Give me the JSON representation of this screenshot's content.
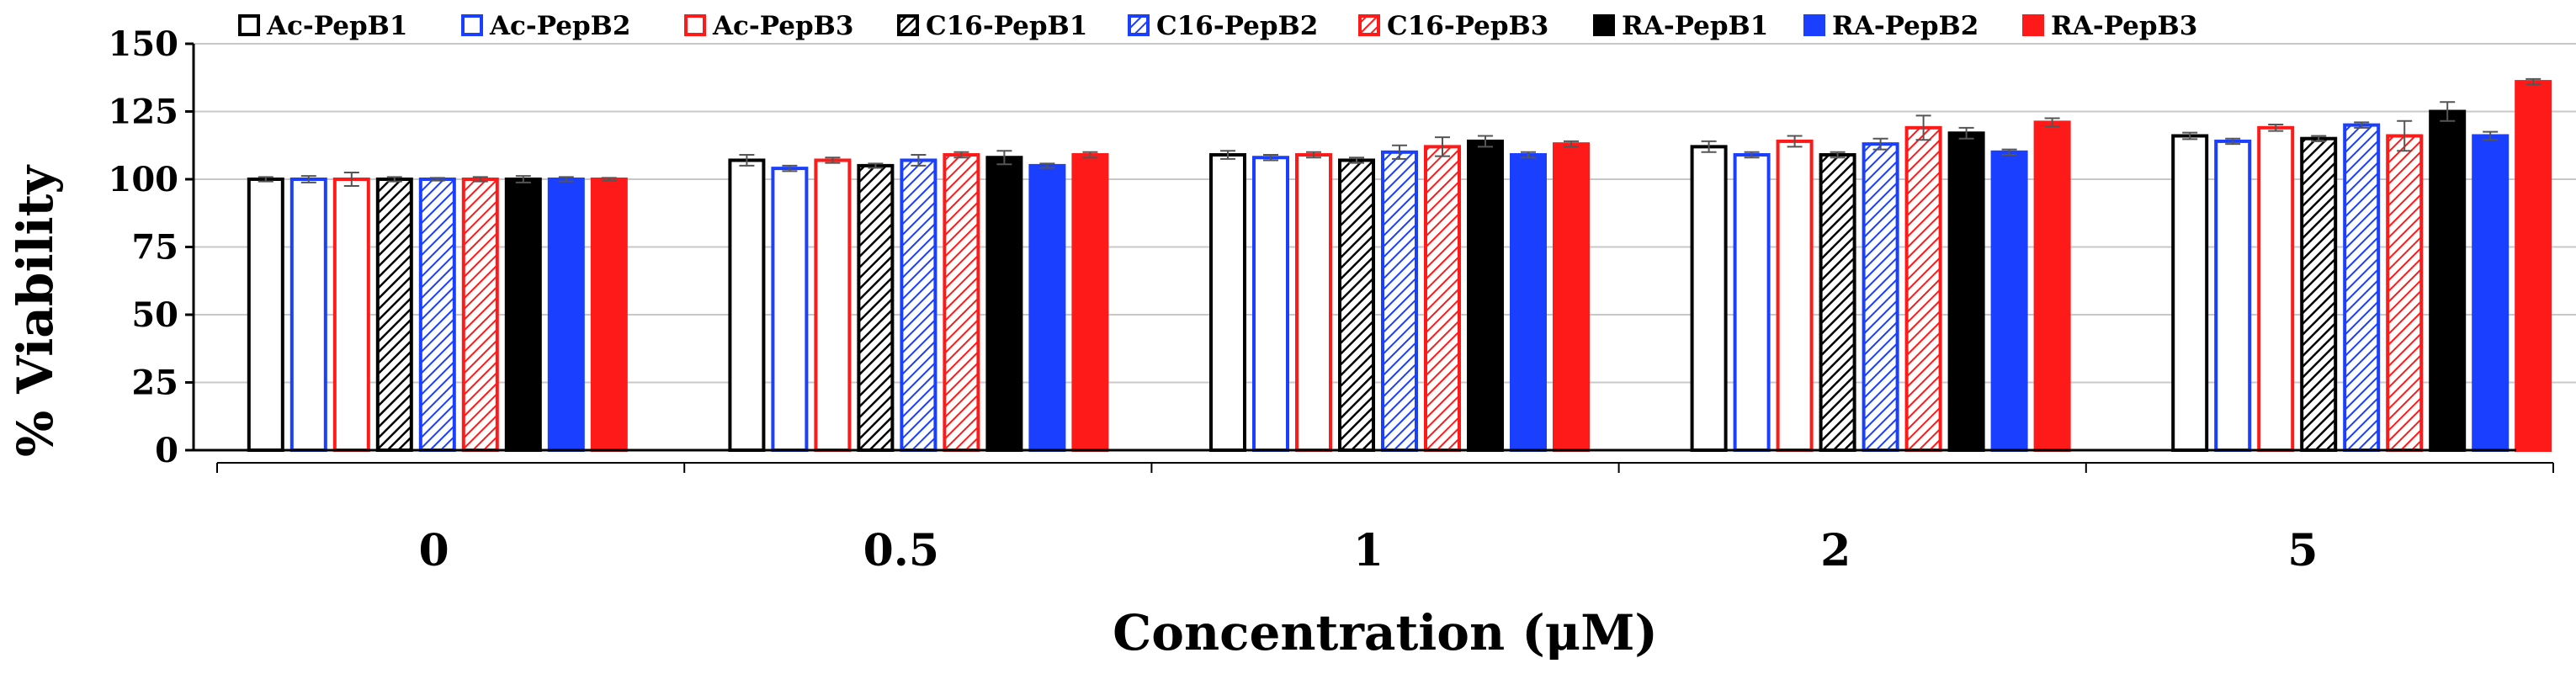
{
  "chart_data": {
    "type": "bar",
    "title": "",
    "xlabel": "Concentration (μM)",
    "ylabel": "% Viability",
    "ylim": [
      0,
      150
    ],
    "yticks": [
      0,
      25,
      50,
      75,
      100,
      125,
      150
    ],
    "grid": true,
    "legend_position": "top",
    "categories": [
      "0",
      "0.5",
      "1",
      "2",
      "5"
    ],
    "series": [
      {
        "name": "Ac-PepB1",
        "color": "#000000",
        "fill": "none",
        "values": [
          100,
          107,
          109,
          112,
          116
        ],
        "errors": [
          0.8,
          2.0,
          1.5,
          2.0,
          1.2
        ]
      },
      {
        "name": "Ac-PepB2",
        "color": "#1a3fff",
        "fill": "none",
        "values": [
          100,
          104,
          108,
          109,
          114
        ],
        "errors": [
          1.2,
          1.0,
          1.0,
          1.0,
          1.0
        ]
      },
      {
        "name": "Ac-PepB3",
        "color": "#ff1a1a",
        "fill": "none",
        "values": [
          100,
          107,
          109,
          114,
          119
        ],
        "errors": [
          2.5,
          1.0,
          1.0,
          2.0,
          1.2
        ]
      },
      {
        "name": "C16-PepB1",
        "color": "#000000",
        "fill": "hatched",
        "values": [
          100,
          105,
          107,
          109,
          115
        ],
        "errors": [
          0.8,
          0.8,
          1.0,
          1.0,
          1.0
        ]
      },
      {
        "name": "C16-PepB2",
        "color": "#1a3fff",
        "fill": "hatched",
        "values": [
          100,
          107,
          110,
          113,
          120
        ],
        "errors": [
          0.5,
          2.0,
          2.5,
          2.0,
          1.0
        ]
      },
      {
        "name": "C16-PepB3",
        "color": "#ff1a1a",
        "fill": "hatched",
        "values": [
          100,
          109,
          112,
          119,
          116
        ],
        "errors": [
          0.8,
          1.0,
          3.5,
          4.5,
          5.5
        ]
      },
      {
        "name": "RA-PepB1",
        "color": "#000000",
        "fill": "solid",
        "values": [
          100,
          108,
          114,
          117,
          125
        ],
        "errors": [
          1.2,
          2.5,
          2.0,
          2.0,
          3.5
        ]
      },
      {
        "name": "RA-PepB2",
        "color": "#1a3fff",
        "fill": "solid",
        "values": [
          100,
          105,
          109,
          110,
          116
        ],
        "errors": [
          0.8,
          0.8,
          1.0,
          1.0,
          1.5
        ]
      },
      {
        "name": "RA-PepB3",
        "color": "#ff1a1a",
        "fill": "solid",
        "values": [
          100,
          109,
          113,
          121,
          136
        ],
        "errors": [
          0.5,
          1.0,
          1.0,
          1.5,
          1.0
        ]
      }
    ]
  }
}
